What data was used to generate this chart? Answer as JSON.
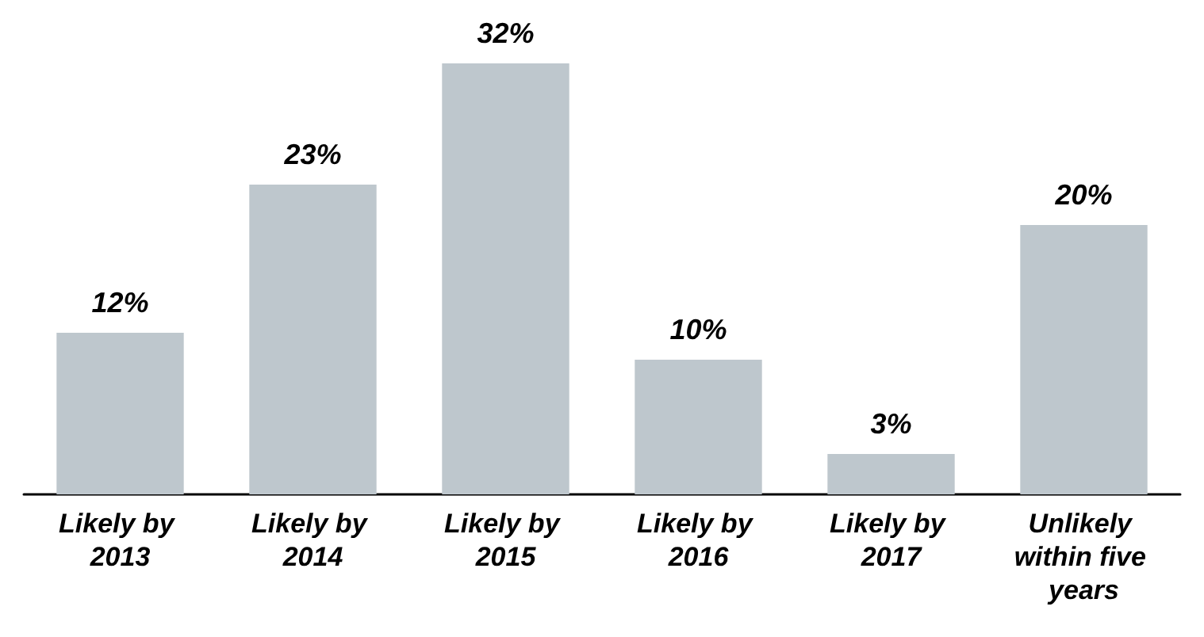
{
  "chart_data": {
    "type": "bar",
    "categories": [
      "Likely by 2013",
      "Likely by 2014",
      "Likely by 2015",
      "Likely by 2016",
      "Likely by 2017",
      "Unlikely within five years"
    ],
    "values": [
      12,
      23,
      32,
      10,
      3,
      20
    ],
    "color": "#bec7cd",
    "value_labels": [
      "12%",
      "23%",
      "32%",
      "10%",
      "3%",
      "20%"
    ],
    "grid": false
  }
}
